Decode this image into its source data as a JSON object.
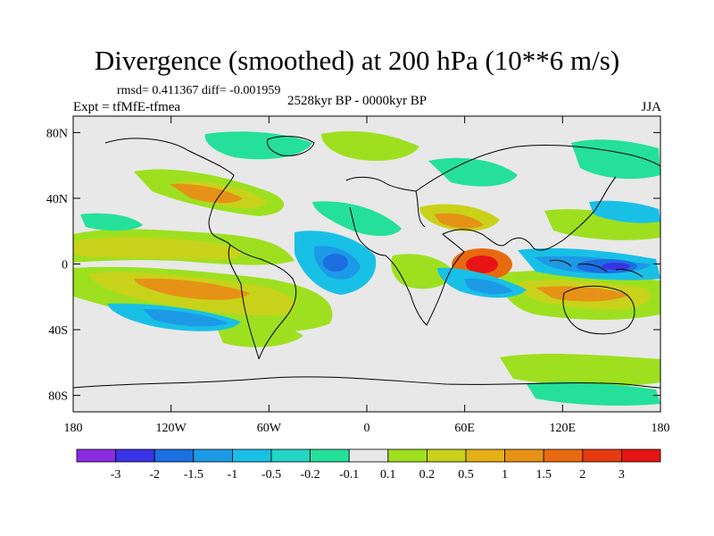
{
  "title": "Divergence (smoothed) at 200 hPa (10**6 m/s)",
  "stats_line": "rmsd= 0.411367 diff= -0.001959",
  "experiment": "Expt = tfMfE-tfmea",
  "period": "2528kyr BP - 0000kyr BP",
  "season": "JJA",
  "lat_axis": {
    "labels": [
      "80N",
      "40N",
      "0",
      "40S",
      "80S"
    ],
    "values": [
      80,
      40,
      0,
      -40,
      -80
    ],
    "range": [
      -90,
      90
    ]
  },
  "lon_axis": {
    "labels": [
      "180",
      "120W",
      "60W",
      "0",
      "60E",
      "120E",
      "180"
    ],
    "values": [
      -180,
      -120,
      -60,
      0,
      60,
      120,
      180
    ],
    "range": [
      -180,
      180
    ]
  },
  "colorbar": {
    "labels": [
      "-3",
      "-2",
      "-1.5",
      "-1",
      "-0.5",
      "-0.2",
      "-0.1",
      "0.1",
      "0.2",
      "0.5",
      "1",
      "1.5",
      "2",
      "3"
    ],
    "colors": [
      "#8a2be2",
      "#3a32e6",
      "#1b6fe0",
      "#1c9ae6",
      "#19c0e6",
      "#22d6c3",
      "#25e09a",
      "#e8e8e8",
      "#9ee020",
      "#c9d21a",
      "#e6b018",
      "#e69216",
      "#e86a10",
      "#e83a10",
      "#e61414"
    ]
  },
  "anomaly_colors": {
    "strong_pos": "#e61414",
    "pos": "#e86a10",
    "mod_pos": "#e69216",
    "weak_pos": "#c9d21a",
    "faint_pos": "#9ee020",
    "faint_neg": "#25e09a",
    "weak_neg": "#19c0e6",
    "mod_neg": "#1c9ae6",
    "neg": "#1b6fe0",
    "strong_neg": "#3a32e6",
    "neutral": "#e8e8e8"
  }
}
